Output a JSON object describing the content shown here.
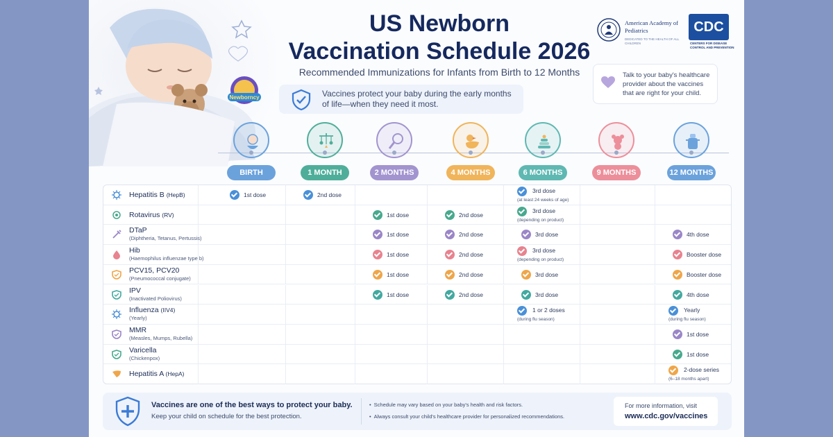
{
  "header": {
    "title_line1": "US Newborn",
    "title_line2": "Vaccination Schedule 2026",
    "subtitle": "Recommended Immunizations for Infants from Birth to 12 Months",
    "banner": "Vaccines protect your baby during the early months of life—when they need it most.",
    "badge_text": "Newborncy"
  },
  "logos": {
    "aap_name": "American Academy of Pediatrics",
    "aap_tagline": "DEDICATED TO THE HEALTH OF ALL CHILDREN",
    "cdc_name": "CDC",
    "cdc_tagline": "CENTERS FOR DISEASE CONTROL AND PREVENTION"
  },
  "talk_note": "Talk to your baby's healthcare provider about the vaccines that are right for your child.",
  "ages": [
    {
      "label": "BIRTH",
      "color": "#6ba2dc",
      "icon": "baby-icon"
    },
    {
      "label": "1 MONTH",
      "color": "#4fae9a",
      "icon": "mobile-icon"
    },
    {
      "label": "2 MONTHS",
      "color": "#a294cf",
      "icon": "rattle-icon"
    },
    {
      "label": "4 MONTHS",
      "color": "#f0b45a",
      "icon": "duck-icon"
    },
    {
      "label": "6 MONTHS",
      "color": "#5fb8b2",
      "icon": "stacking-rings-icon"
    },
    {
      "label": "9 MONTHS",
      "color": "#ec8f9b",
      "icon": "teddy-bear-icon"
    },
    {
      "label": "12 MONTHS",
      "color": "#6ba2dc",
      "icon": "sippy-cup-icon"
    }
  ],
  "vaccines": [
    {
      "name": "Hepatitis B",
      "abbr": "(HepB)",
      "sub": "",
      "icon": "virus-icon",
      "doses": [
        {
          "col": 0,
          "label": "1st dose",
          "color": "#4a90d9"
        },
        {
          "col": 1,
          "label": "2nd dose",
          "color": "#4a90d9"
        },
        {
          "col": 4,
          "label": "3rd dose",
          "note": "(at least 24 weeks of age)",
          "color": "#4a90d9"
        }
      ]
    },
    {
      "name": "Rotavirus",
      "abbr": "(RV)",
      "sub": "",
      "icon": "rotavirus-icon",
      "doses": [
        {
          "col": 2,
          "label": "1st dose",
          "color": "#48a98d"
        },
        {
          "col": 3,
          "label": "2nd dose",
          "color": "#48a98d"
        },
        {
          "col": 4,
          "label": "3rd dose",
          "note": "(depending on product)",
          "color": "#48a98d"
        }
      ]
    },
    {
      "name": "DTaP",
      "abbr": "",
      "sub": "(Diphtheria, Tetanus, Pertussis)",
      "icon": "syringe-icon",
      "doses": [
        {
          "col": 2,
          "label": "1st dose",
          "color": "#9a86c8"
        },
        {
          "col": 3,
          "label": "2nd dose",
          "color": "#9a86c8"
        },
        {
          "col": 4,
          "label": "3rd dose",
          "color": "#9a86c8"
        },
        {
          "col": 6,
          "label": "4th dose",
          "color": "#9a86c8"
        }
      ]
    },
    {
      "name": "Hib",
      "abbr": "",
      "sub": "(Haemophilus influenzae type b)",
      "icon": "drop-icon",
      "doses": [
        {
          "col": 2,
          "label": "1st dose",
          "color": "#e8838f"
        },
        {
          "col": 3,
          "label": "2nd dose",
          "color": "#e8838f"
        },
        {
          "col": 4,
          "label": "3rd dose",
          "note": "(depending on product)",
          "color": "#e8838f"
        },
        {
          "col": 6,
          "label": "Booster dose",
          "color": "#e8838f"
        }
      ]
    },
    {
      "name": "PCV15, PCV20",
      "abbr": "",
      "sub": "(Pneumococcal conjugate)",
      "icon": "shield-icon",
      "doses": [
        {
          "col": 2,
          "label": "1st dose",
          "color": "#efa64a"
        },
        {
          "col": 3,
          "label": "2nd dose",
          "color": "#efa64a"
        },
        {
          "col": 4,
          "label": "3rd dose",
          "color": "#efa64a"
        },
        {
          "col": 6,
          "label": "Booster dose",
          "color": "#efa64a"
        }
      ]
    },
    {
      "name": "IPV",
      "abbr": "",
      "sub": "(Inactivated Poliovirus)",
      "icon": "shield-icon",
      "doses": [
        {
          "col": 2,
          "label": "1st dose",
          "color": "#43a9a0"
        },
        {
          "col": 3,
          "label": "2nd dose",
          "color": "#43a9a0"
        },
        {
          "col": 4,
          "label": "3rd dose",
          "color": "#43a9a0"
        },
        {
          "col": 6,
          "label": "4th dose",
          "color": "#43a9a0"
        }
      ]
    },
    {
      "name": "Influenza",
      "abbr": "(IIV4)",
      "sub": "(Yearly)",
      "icon": "virus-icon",
      "doses": [
        {
          "col": 4,
          "label": "1 or 2 doses",
          "note": "(during flu season)",
          "color": "#4a90d9"
        },
        {
          "col": 6,
          "label": "Yearly",
          "note": "(during flu season)",
          "color": "#4a90d9"
        }
      ]
    },
    {
      "name": "MMR",
      "abbr": "",
      "sub": "(Measles, Mumps, Rubella)",
      "icon": "shield-icon",
      "doses": [
        {
          "col": 6,
          "label": "1st dose",
          "color": "#9a86c8"
        }
      ]
    },
    {
      "name": "Varicella",
      "abbr": "",
      "sub": "(Chickenpox)",
      "icon": "shield-icon",
      "doses": [
        {
          "col": 6,
          "label": "1st dose",
          "color": "#48a98d"
        }
      ]
    },
    {
      "name": "Hepatitis A",
      "abbr": "(HepA)",
      "sub": "",
      "icon": "liver-icon",
      "doses": [
        {
          "col": 6,
          "label": "2-dose series",
          "note": "(6–18 months apart)",
          "color": "#efa64a"
        }
      ]
    }
  ],
  "footer": {
    "main": "Vaccines are one of the best ways to protect your baby.",
    "sub": "Keep your child on schedule for the best protection.",
    "note1": "Schedule may vary based on your baby's health and risk factors.",
    "note2": "Always consult your child's healthcare provider for personalized recommendations.",
    "more": "For more information, visit",
    "url": "www.cdc.gov/vaccines"
  }
}
